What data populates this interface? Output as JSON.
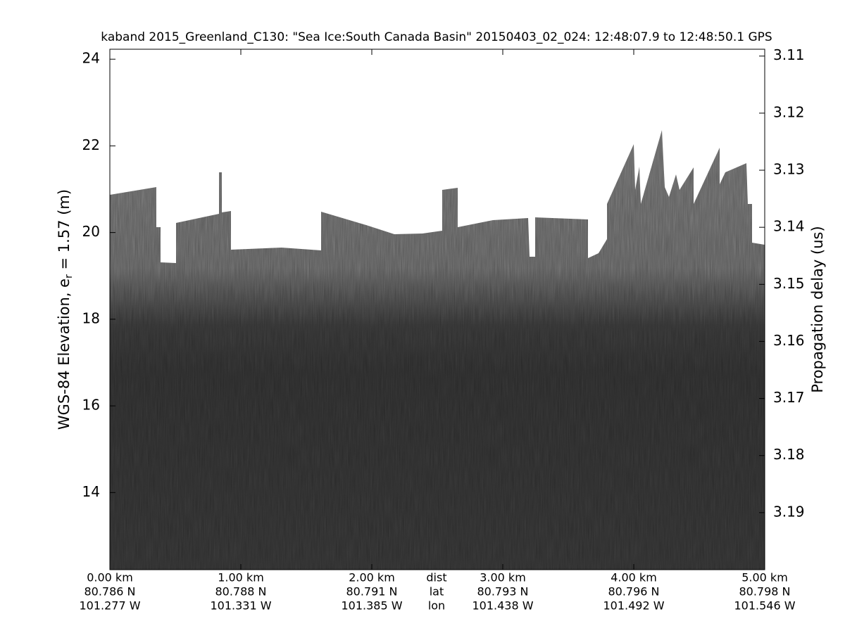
{
  "chart_data": {
    "type": "echogram",
    "title": "kaband 2015_Greenland_C130: \"Sea Ice:South Canada Basin\"  20150403_02_024: 12:48:07.9 to 12:48:50.1 GPS",
    "ylabel_parts": [
      "WGS-84 Elevation, e",
      "r",
      " = 1.57 (m)"
    ],
    "y2label": "Propagation delay (us)",
    "xlim": [
      0,
      5
    ],
    "xticks": [
      {
        "value": 0,
        "label": "0.00 km",
        "lat": "80.786 N",
        "lon": "101.277 W"
      },
      {
        "value": 1,
        "label": "1.00 km",
        "lat": "80.788 N",
        "lon": "101.331 W"
      },
      {
        "value": 2,
        "label": "2.00 km",
        "lat": "80.791 N",
        "lon": "101.385 W"
      },
      {
        "value": 3,
        "label": "3.00 km",
        "lat": "80.793 N",
        "lon": "101.438 W"
      },
      {
        "value": 4,
        "label": "4.00 km",
        "lat": "80.796 N",
        "lon": "101.492 W"
      },
      {
        "value": 5,
        "label": "5.00 km",
        "lat": "80.798 N",
        "lon": "101.546 W"
      }
    ],
    "x_row_labels": [
      "dist",
      "lat",
      "lon"
    ],
    "ylim": [
      12.22,
      24.23
    ],
    "yticks": [
      14,
      16,
      18,
      20,
      22,
      24
    ],
    "y2lim": [
      3.1088,
      3.2
    ],
    "y2_reversed": true,
    "y2ticks": [
      3.11,
      3.12,
      3.13,
      3.14,
      3.15,
      3.16,
      3.17,
      3.18,
      3.19
    ]
  }
}
